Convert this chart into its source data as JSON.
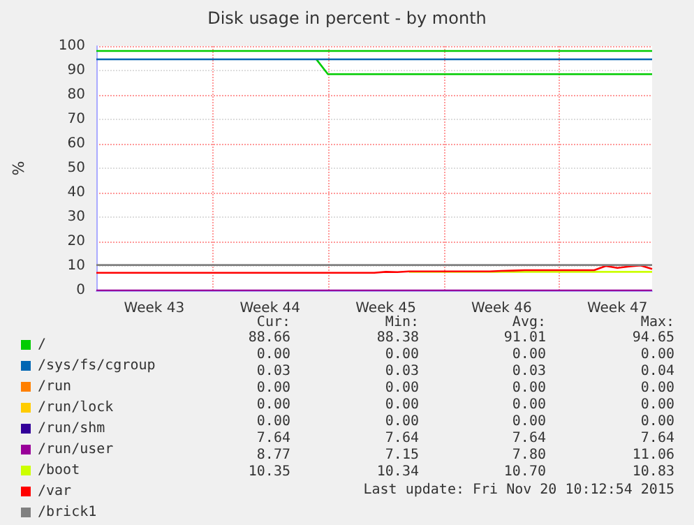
{
  "chart_data": {
    "type": "line",
    "title": "Disk usage in percent - by month",
    "ylabel": "%",
    "categories": [
      null,
      null,
      null,
      null,
      null,
      "Week 43",
      null,
      null,
      null,
      null,
      null,
      null,
      null,
      null,
      null,
      "Week 44",
      null,
      null,
      null,
      null,
      null,
      null,
      null,
      null,
      null,
      "Week 45",
      null,
      null,
      null,
      null,
      null,
      null,
      null,
      null,
      null,
      "Week 46",
      null,
      null,
      null,
      null,
      null,
      null,
      null,
      null,
      null,
      "Week 47",
      null,
      null,
      null
    ],
    "ylim": [
      0,
      100
    ],
    "yticks": [
      0,
      10,
      20,
      30,
      40,
      50,
      60,
      70,
      80,
      90,
      100
    ],
    "grid": true,
    "legend": "bottom left",
    "marker": "none",
    "line_style": "solid",
    "series": [
      {
        "name": "/",
        "color": "#00cc00",
        "values": [
          null,
          null,
          null,
          null,
          null,
          null,
          null,
          null,
          null,
          null,
          null,
          null,
          null,
          null,
          null,
          null,
          null,
          null,
          null,
          94.6,
          88.5,
          88.5,
          88.5,
          88.5,
          88.5,
          88.5,
          88.5,
          88.5,
          88.5,
          88.5,
          88.5,
          88.5,
          88.5,
          88.5,
          88.5,
          88.5,
          88.5,
          88.5,
          88.5,
          88.5,
          88.5,
          88.5,
          88.5,
          88.5,
          88.5,
          88.5,
          88.5,
          88.5,
          88.5
        ]
      },
      {
        "name": "/sys/fs/cgroup",
        "color": "#0066b3",
        "values": [
          null,
          null,
          null,
          null,
          null,
          null,
          null,
          null,
          null,
          null,
          null,
          null,
          null,
          null,
          null,
          null,
          null,
          null,
          null,
          null,
          null,
          null,
          null,
          null,
          null,
          null,
          null,
          null,
          null,
          null,
          null,
          null,
          null,
          null,
          null,
          null,
          null,
          null,
          null,
          null,
          null,
          null,
          null,
          null,
          null,
          null,
          null,
          null,
          null
        ]
      },
      {
        "name": "/run",
        "color": "#ff8000",
        "values": [
          null,
          null,
          null,
          null,
          null,
          null,
          null,
          null,
          null,
          null,
          null,
          null,
          null,
          null,
          null,
          null,
          null,
          null,
          null,
          null,
          null,
          null,
          null,
          null,
          null,
          null,
          null,
          null,
          null,
          null,
          null,
          null,
          null,
          null,
          null,
          null,
          null,
          null,
          null,
          null,
          null,
          null,
          null,
          null,
          null,
          null,
          null,
          null,
          null
        ]
      },
      {
        "name": "/run/lock",
        "color": "#ffcc00",
        "values": [
          null,
          null,
          null,
          null,
          null,
          null,
          null,
          null,
          null,
          null,
          null,
          null,
          null,
          null,
          null,
          null,
          null,
          null,
          null,
          null,
          null,
          null,
          null,
          null,
          null,
          null,
          null,
          null,
          null,
          null,
          null,
          null,
          null,
          null,
          null,
          null,
          null,
          null,
          null,
          null,
          null,
          null,
          null,
          null,
          null,
          null,
          null,
          null,
          null
        ]
      },
      {
        "name": "/run/shm",
        "color": "#330099",
        "values": [
          null,
          null,
          null,
          null,
          null,
          null,
          null,
          null,
          null,
          null,
          null,
          null,
          null,
          null,
          null,
          null,
          null,
          null,
          null,
          null,
          null,
          null,
          null,
          null,
          null,
          null,
          null,
          null,
          null,
          null,
          null,
          null,
          null,
          null,
          null,
          null,
          null,
          null,
          null,
          null,
          null,
          null,
          null,
          null,
          null,
          null,
          null,
          null,
          null
        ]
      },
      {
        "name": "/run/user",
        "color": "#990099",
        "values": [
          0,
          0,
          0,
          0,
          0,
          0,
          0,
          0,
          0,
          0,
          0,
          0,
          0,
          0,
          0,
          0,
          0,
          0,
          0,
          0,
          0,
          0,
          0,
          0,
          0,
          0,
          0,
          0,
          0,
          0,
          0,
          0,
          0,
          0,
          0,
          0,
          0,
          0,
          0,
          0,
          0,
          0,
          0,
          0,
          0,
          0,
          0,
          0,
          0
        ]
      },
      {
        "name": "/boot",
        "color": "#ccff00",
        "values": [
          null,
          null,
          null,
          null,
          null,
          null,
          null,
          null,
          null,
          null,
          null,
          null,
          null,
          null,
          null,
          null,
          null,
          null,
          null,
          null,
          null,
          null,
          null,
          null,
          null,
          null,
          null,
          7.6,
          7.6,
          7.6,
          7.6,
          7.6,
          7.6,
          7.6,
          7.6,
          7.6,
          7.6,
          7.6,
          7.6,
          7.6,
          7.6,
          7.6,
          7.6,
          7.6,
          7.6,
          7.6,
          7.6,
          7.6,
          7.6
        ]
      },
      {
        "name": "/var",
        "color": "#ff0000",
        "values": [
          7.2,
          7.2,
          7.2,
          7.2,
          7.2,
          7.2,
          7.2,
          7.2,
          7.2,
          7.2,
          7.2,
          7.2,
          7.2,
          7.2,
          7.2,
          7.2,
          7.2,
          7.2,
          7.2,
          7.2,
          7.2,
          7.2,
          7.2,
          7.2,
          7.2,
          7.6,
          7.5,
          7.8,
          7.8,
          7.8,
          7.8,
          7.8,
          7.8,
          7.8,
          7.8,
          8.0,
          8.1,
          8.3,
          8.3,
          8.3,
          8.3,
          8.3,
          8.3,
          8.3,
          10.0,
          9.2,
          9.8,
          10.2,
          8.8
        ]
      },
      {
        "name": "/brick1",
        "color": "#808080",
        "values": [
          10.4,
          10.4,
          10.4,
          10.4,
          10.4,
          10.4,
          10.4,
          10.4,
          10.4,
          10.4,
          10.4,
          10.4,
          10.4,
          10.4,
          10.4,
          10.4,
          10.4,
          10.4,
          10.4,
          10.4,
          10.4,
          10.4,
          10.4,
          10.4,
          10.4,
          10.4,
          10.4,
          10.4,
          10.4,
          10.4,
          10.4,
          10.4,
          10.4,
          10.4,
          10.4,
          10.4,
          10.4,
          10.4,
          10.4,
          10.4,
          10.4,
          10.4,
          10.4,
          10.4,
          10.4,
          10.4,
          10.4,
          10.4,
          10.4
        ]
      }
    ],
    "ref_lines": [
      {
        "axis": "y",
        "value": 98,
        "label": null,
        "color": "#00cc00"
      },
      {
        "axis": "y",
        "value": 95,
        "label": null,
        "color": "#0066b3"
      }
    ],
    "annotations": [
      "Cur:",
      "Min:",
      "Avg:",
      "Max:",
      "88.66",
      "88.38",
      "91.01",
      "94.65",
      "0.00",
      "0.00",
      "0.00",
      "0.00",
      "0.03",
      "0.03",
      "0.03",
      "0.04",
      "0.00",
      "0.00",
      "0.00",
      "0.00",
      "0.00",
      "0.00",
      "0.00",
      "0.00",
      "0.00",
      "0.00",
      "0.00",
      "0.00",
      "7.64",
      "7.64",
      "7.64",
      "7.64",
      "8.77",
      "7.15",
      "7.80",
      "11.06",
      "10.35",
      "10.34",
      "10.70",
      "10.83",
      "Last update: Fri Nov 20 10:12:54 2015"
    ]
  }
}
